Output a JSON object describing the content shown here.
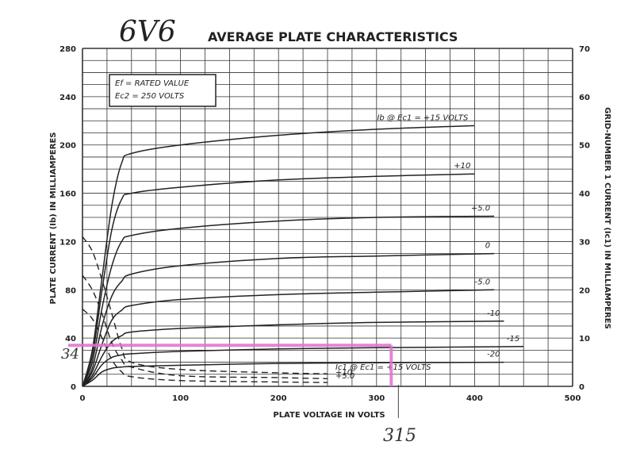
{
  "header": {
    "tube_label": "6V6",
    "title": "AVERAGE PLATE CHARACTERISTICS"
  },
  "conditions": {
    "line1": "Ef = RATED VALUE",
    "line2": "Ec2 = 250 VOLTS"
  },
  "axes": {
    "xlabel": "PLATE VOLTAGE IN VOLTS",
    "ylabel_left": "PLATE CURRENT (Ib) IN MILLIAMPERES",
    "ylabel_right": "GRID-NUMBER 1 CURRENT (Ic1) IN MILLIAMPERES",
    "x_ticks": [
      "0",
      "100",
      "200",
      "300",
      "400",
      "500"
    ],
    "y_left_ticks": [
      "0",
      "40",
      "80",
      "120",
      "160",
      "200",
      "240",
      "280"
    ],
    "y_right_ticks": [
      "0",
      "10",
      "20",
      "30",
      "40",
      "50",
      "60",
      "70"
    ]
  },
  "annotations": {
    "handwritten_y": "34",
    "handwritten_x": "315",
    "highlight_color": "#e070d0"
  },
  "chart_data": {
    "type": "line",
    "title": "AVERAGE PLATE CHARACTERISTICS",
    "xlabel": "PLATE VOLTAGE IN VOLTS",
    "ylabel": "PLATE CURRENT (Ib) IN MILLIAMPERES",
    "y2label": "GRID-NUMBER 1 CURRENT (Ic1) IN MILLIAMPERES",
    "xlim": [
      0,
      500
    ],
    "ylim": [
      0,
      280
    ],
    "y2lim": [
      0,
      70
    ],
    "grid": true,
    "plate_current_series": [
      {
        "name": "Ib @ Ec1 = +15 VOLTS",
        "label": "Ib @ Ec1 = +15 VOLTS",
        "points": [
          [
            0,
            0
          ],
          [
            10,
            30
          ],
          [
            20,
            90
          ],
          [
            30,
            150
          ],
          [
            40,
            185
          ],
          [
            50,
            193
          ],
          [
            100,
            200
          ],
          [
            200,
            208
          ],
          [
            300,
            213
          ],
          [
            400,
            216
          ]
        ]
      },
      {
        "name": "+10",
        "label": "+10",
        "points": [
          [
            0,
            0
          ],
          [
            10,
            25
          ],
          [
            20,
            80
          ],
          [
            30,
            130
          ],
          [
            40,
            155
          ],
          [
            50,
            160
          ],
          [
            100,
            165
          ],
          [
            200,
            171
          ],
          [
            300,
            174
          ],
          [
            400,
            176
          ]
        ]
      },
      {
        "name": "+5.0",
        "label": "+5.0",
        "points": [
          [
            0,
            0
          ],
          [
            10,
            20
          ],
          [
            20,
            65
          ],
          [
            30,
            100
          ],
          [
            40,
            120
          ],
          [
            50,
            125
          ],
          [
            100,
            131
          ],
          [
            200,
            137
          ],
          [
            300,
            140
          ],
          [
            420,
            141
          ]
        ]
      },
      {
        "name": "0",
        "label": "0",
        "points": [
          [
            0,
            0
          ],
          [
            10,
            15
          ],
          [
            20,
            50
          ],
          [
            30,
            75
          ],
          [
            40,
            87
          ],
          [
            50,
            93
          ],
          [
            100,
            100
          ],
          [
            200,
            106
          ],
          [
            300,
            108
          ],
          [
            420,
            110
          ]
        ]
      },
      {
        "name": "-5.0",
        "label": "-5.0",
        "points": [
          [
            0,
            0
          ],
          [
            10,
            12
          ],
          [
            20,
            35
          ],
          [
            30,
            55
          ],
          [
            40,
            63
          ],
          [
            50,
            67
          ],
          [
            100,
            72
          ],
          [
            200,
            76
          ],
          [
            300,
            78
          ],
          [
            420,
            80
          ]
        ]
      },
      {
        "name": "-10",
        "label": "-10",
        "points": [
          [
            0,
            0
          ],
          [
            10,
            9
          ],
          [
            20,
            25
          ],
          [
            30,
            37
          ],
          [
            40,
            42
          ],
          [
            50,
            45
          ],
          [
            100,
            48
          ],
          [
            200,
            51
          ],
          [
            300,
            53
          ],
          [
            430,
            54
          ]
        ]
      },
      {
        "name": "-15",
        "label": "-15",
        "points": [
          [
            0,
            0
          ],
          [
            10,
            7
          ],
          [
            20,
            18
          ],
          [
            30,
            24
          ],
          [
            40,
            26
          ],
          [
            50,
            27
          ],
          [
            100,
            29
          ],
          [
            200,
            31
          ],
          [
            300,
            32
          ],
          [
            450,
            33
          ]
        ]
      },
      {
        "name": "-20",
        "label": "-20",
        "points": [
          [
            0,
            0
          ],
          [
            10,
            5
          ],
          [
            20,
            12
          ],
          [
            30,
            15
          ],
          [
            40,
            16
          ],
          [
            50,
            16.5
          ],
          [
            100,
            17.5
          ],
          [
            200,
            19
          ],
          [
            300,
            19.5
          ],
          [
            430,
            20
          ]
        ]
      }
    ],
    "grid_current_series": [
      {
        "name": "Ic1 @ Ec1 = +15 VOLTS",
        "label": "Ic1 @ Ec1 = +15 VOLTS",
        "points": [
          [
            0,
            31
          ],
          [
            10,
            28
          ],
          [
            20,
            22
          ],
          [
            30,
            15
          ],
          [
            40,
            8
          ],
          [
            50,
            5
          ],
          [
            100,
            3.5
          ],
          [
            200,
            2.8
          ],
          [
            250,
            2.6
          ]
        ]
      },
      {
        "name": "+10",
        "label": "+10",
        "points": [
          [
            0,
            23
          ],
          [
            10,
            20
          ],
          [
            20,
            15
          ],
          [
            30,
            9
          ],
          [
            40,
            5.5
          ],
          [
            50,
            4
          ],
          [
            100,
            2.2
          ],
          [
            200,
            1.8
          ],
          [
            250,
            1.6
          ]
        ]
      },
      {
        "name": "+5.0",
        "label": "+5.0",
        "points": [
          [
            0,
            16
          ],
          [
            10,
            14
          ],
          [
            20,
            10
          ],
          [
            30,
            5.5
          ],
          [
            40,
            3
          ],
          [
            50,
            2
          ],
          [
            100,
            1.2
          ],
          [
            200,
            0.9
          ],
          [
            250,
            0.8
          ]
        ]
      }
    ],
    "highlight": {
      "x": 315,
      "y": 34
    }
  }
}
